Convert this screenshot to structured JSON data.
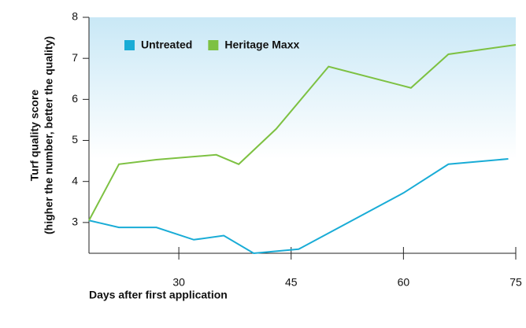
{
  "chart_data": {
    "type": "line",
    "y_label": [
      "Turf quality score",
      "(higher the number, better the quality)"
    ],
    "x_label": "Days after first application",
    "xlim": [
      18,
      75
    ],
    "xticks": [
      30,
      45,
      60,
      75
    ],
    "ylim": [
      2.25,
      8
    ],
    "yticks": [
      3,
      4,
      5,
      6,
      7,
      8
    ],
    "legend": "top-left",
    "series": [
      {
        "name": "Untreated",
        "color": "#19acd6",
        "x": [
          18,
          22,
          27,
          32,
          36,
          40,
          46,
          60,
          66,
          74
        ],
        "values": [
          3.05,
          2.88,
          2.88,
          2.58,
          2.68,
          2.25,
          2.35,
          3.72,
          4.42,
          4.55
        ]
      },
      {
        "name": "Heritage Maxx",
        "color": "#7dc142",
        "x": [
          18,
          22,
          27,
          35,
          38,
          43,
          50,
          61,
          66,
          75
        ],
        "values": [
          3.05,
          4.42,
          4.53,
          4.65,
          4.42,
          5.28,
          6.8,
          6.28,
          7.1,
          7.33
        ]
      }
    ]
  }
}
